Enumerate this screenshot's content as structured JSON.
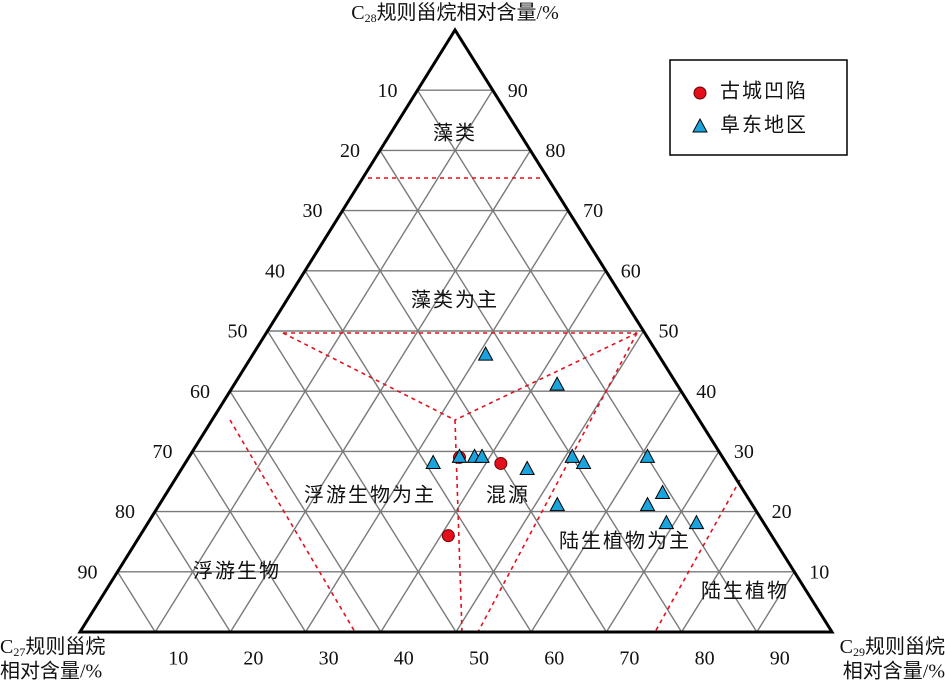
{
  "chart_data": {
    "type": "ternary",
    "top_label": {
      "base": "C",
      "sub": "28",
      "rest": "规则甾烷相对含量/%"
    },
    "left_label": {
      "base": "C",
      "sub": "27",
      "rest": "规则甾烷",
      "line2": "相对含量/%"
    },
    "right_label": {
      "base": "C",
      "sub": "29",
      "rest": "规则甾烷",
      "line2": "相对含量/%"
    },
    "c27ticks": [
      10,
      20,
      30,
      40,
      50,
      60,
      70,
      80,
      90
    ],
    "c28ticks": [
      10,
      20,
      30,
      40,
      50,
      60,
      70,
      80,
      90
    ],
    "c29ticks": [
      10,
      20,
      30,
      40,
      50,
      60,
      70,
      80,
      90
    ],
    "grid": true,
    "legend": "top-right",
    "regions": [
      "藻类",
      "藻类为主",
      "浮游生物为主",
      "混源",
      "陆生植物为主",
      "浮游生物",
      "陆生植物"
    ],
    "series": [
      {
        "name": "古城凹陷",
        "color": "#e3101c",
        "marker": "circle",
        "c27": [
          35,
          30,
          43
        ],
        "c28": [
          29,
          28,
          16
        ],
        "c29": [
          36,
          42,
          41
        ]
      },
      {
        "name": "阜东地区",
        "color": "#1aa3dc",
        "marker": "triangle",
        "c27": [
          23,
          16,
          39,
          35,
          33,
          32,
          20,
          19,
          27,
          10,
          26,
          14,
          11,
          13,
          9
        ],
        "c28": [
          46,
          41,
          28,
          29,
          29,
          29,
          29,
          28,
          27,
          29,
          21,
          21,
          23,
          18,
          18
        ],
        "c29": [
          31,
          43,
          33,
          36,
          38,
          39,
          51,
          53,
          46,
          61,
          53,
          65,
          66,
          69,
          73
        ]
      }
    ]
  }
}
